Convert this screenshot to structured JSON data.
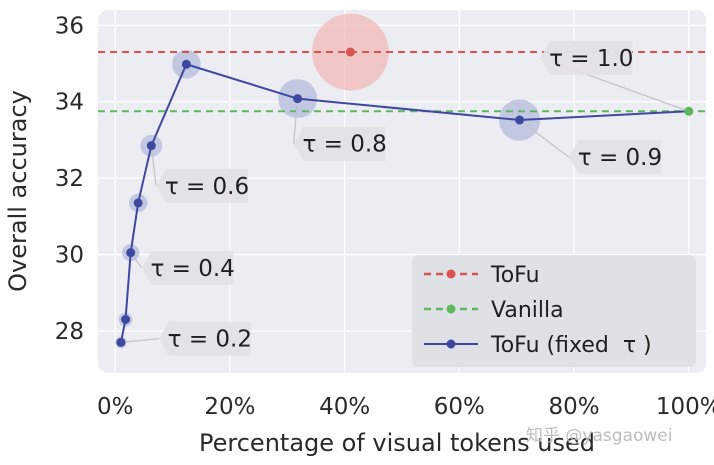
{
  "chart_data": {
    "type": "scatter",
    "xlabel": "Percentage of visual tokens used",
    "ylabel": "Overall accuracy",
    "xlim": [
      -3,
      103
    ],
    "ylim": [
      26.9,
      36.4
    ],
    "x_ticks": [
      0,
      20,
      40,
      60,
      80,
      100
    ],
    "x_tick_labels": [
      "0%",
      "20%",
      "40%",
      "60%",
      "80%",
      "100%"
    ],
    "y_ticks": [
      28,
      30,
      32,
      34,
      36
    ],
    "y_tick_labels": [
      "28",
      "30",
      "32",
      "34",
      "36"
    ],
    "grid": true,
    "legend_position": "bottom-right",
    "series": [
      {
        "name": "ToFu",
        "color": "#d9534f",
        "style": "dashed-horizontal",
        "y": 35.3,
        "marker": {
          "x": 41,
          "y": 35.3
        },
        "bubble_radius": 6.7,
        "bubble_color": "#f2b8b8"
      },
      {
        "name": "Vanilla",
        "color": "#5cb85c",
        "style": "dashed-horizontal",
        "y": 33.75,
        "marker": {
          "x": 100,
          "y": 33.75
        }
      },
      {
        "name": "ToFu (fixed  τ )",
        "color": "#3f48a0",
        "style": "line-markers",
        "bubble_color": "#b4b9dc",
        "points": [
          {
            "x": 1.0,
            "y": 27.7,
            "bubble_radius": 1.0
          },
          {
            "x": 1.8,
            "y": 28.3,
            "bubble_radius": 1.2
          },
          {
            "x": 2.7,
            "y": 30.05,
            "bubble_radius": 1.5
          },
          {
            "x": 4.0,
            "y": 31.35,
            "bubble_radius": 1.6
          },
          {
            "x": 6.3,
            "y": 32.85,
            "bubble_radius": 1.9
          },
          {
            "x": 12.4,
            "y": 34.98,
            "bubble_radius": 2.5
          },
          {
            "x": 31.8,
            "y": 34.08,
            "bubble_radius": 3.4
          },
          {
            "x": 70.5,
            "y": 33.52,
            "bubble_radius": 3.6
          },
          {
            "x": 100,
            "y": 33.75,
            "bubble_radius": 0
          }
        ]
      }
    ],
    "annotations": [
      {
        "text": "τ = 0.2",
        "point_index": 0,
        "label_x": 16.5,
        "label_y": 27.8
      },
      {
        "text": "τ = 0.4",
        "point_index": 2,
        "label_x": 13.5,
        "label_y": 29.65
      },
      {
        "text": "τ = 0.6",
        "point_index": 4,
        "label_x": 16,
        "label_y": 31.8
      },
      {
        "text": "τ = 0.8",
        "point_index": 6,
        "label_x": 40,
        "label_y": 32.9
      },
      {
        "text": "τ = 0.9",
        "point_index": 7,
        "label_x": 88,
        "label_y": 32.55
      },
      {
        "text": "τ = 1.0",
        "point_index": 8,
        "label_x": 83,
        "label_y": 35.15
      }
    ]
  },
  "watermark": "知乎 @yasgaowei"
}
